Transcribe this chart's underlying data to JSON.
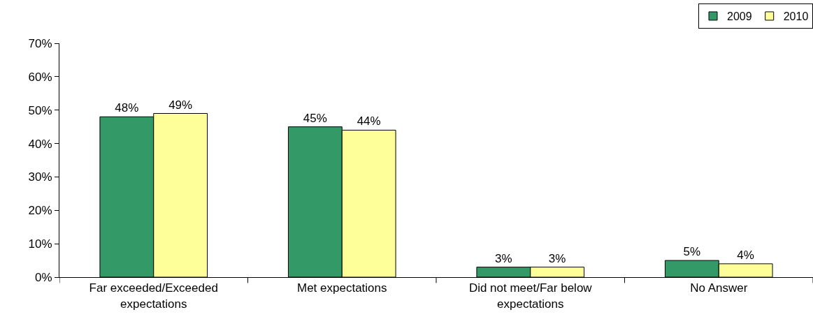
{
  "chart_data": {
    "type": "bar",
    "categories": [
      "Far exceeded/Exceeded expectations",
      "Met expectations",
      "Did not meet/Far below expectations",
      "No Answer"
    ],
    "series": [
      {
        "name": "2009",
        "color": "#339966",
        "values": [
          48,
          45,
          3,
          5
        ],
        "value_labels": [
          "48%",
          "45%",
          "3%",
          "5%"
        ]
      },
      {
        "name": "2010",
        "color": "#ffff99",
        "values": [
          49,
          44,
          3,
          4
        ],
        "value_labels": [
          "49%",
          "44%",
          "3%",
          "4%"
        ]
      }
    ],
    "ylim": [
      0,
      70
    ],
    "yticks": [
      {
        "value": 0,
        "label": "0%"
      },
      {
        "value": 10,
        "label": "10%"
      },
      {
        "value": 20,
        "label": "20%"
      },
      {
        "value": 30,
        "label": "30%"
      },
      {
        "value": 40,
        "label": "40%"
      },
      {
        "value": 50,
        "label": "50%"
      },
      {
        "value": 60,
        "label": "60%"
      },
      {
        "value": 70,
        "label": "70%"
      }
    ],
    "grid": false,
    "legend": "top right"
  }
}
